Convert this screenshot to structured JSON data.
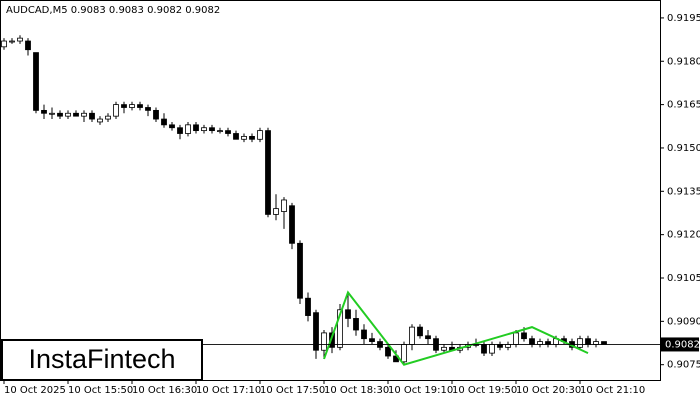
{
  "chart_data": {
    "type": "candlestick",
    "title": "AUDCAD,M5  0.9083 0.9083 0.9082 0.9082",
    "categories": [
      "10 Oct 2025",
      null,
      null,
      null,
      null,
      null,
      null,
      null,
      "10 Oct 15:50",
      null,
      null,
      null,
      null,
      null,
      null,
      null,
      "10 Oct 16:30",
      null,
      null,
      null,
      null,
      null,
      null,
      null,
      "10 Oct 17:10",
      null,
      null,
      null,
      null,
      null,
      null,
      null,
      "10 Oct 17:50",
      null,
      null,
      null,
      null,
      null,
      null,
      null,
      "10 Oct 18:30",
      null,
      null,
      null,
      null,
      null,
      null,
      null,
      "10 Oct 19:10",
      null,
      null,
      null,
      null,
      null,
      null,
      null,
      "10 Oct 19:50",
      null,
      null,
      null,
      null,
      null,
      null,
      null,
      "10 Oct 20:30",
      null,
      null,
      null,
      null,
      null,
      null,
      null,
      "10 Oct 21:10",
      null,
      null,
      null
    ],
    "open": [
      0.9185,
      0.9187,
      0.9187,
      0.9187,
      0.9183,
      0.9163,
      0.9162,
      0.9162,
      0.9161,
      0.9162,
      0.9161,
      0.9162,
      0.9159,
      0.916,
      0.9161,
      0.9165,
      0.9164,
      0.9165,
      0.9164,
      0.9163,
      0.916,
      0.9158,
      0.9157,
      0.9155,
      0.9158,
      0.9156,
      0.9157,
      0.9156,
      0.9156,
      0.9155,
      0.9153,
      0.9154,
      0.9153,
      0.9156,
      0.9127,
      0.9128,
      0.913,
      0.9117,
      0.9098,
      0.9093,
      0.908,
      0.9086,
      0.9081,
      0.9094,
      0.9091,
      0.9087,
      0.9084,
      0.9083,
      0.9081,
      0.9078,
      0.9076,
      0.9082,
      0.9088,
      0.9085,
      0.9084,
      0.908,
      0.9081,
      0.908,
      0.9081,
      0.9082,
      0.9082,
      0.9079,
      0.9082,
      0.9081,
      0.9082,
      0.9086,
      0.9084,
      0.9082,
      0.9083,
      0.9082,
      0.9084,
      0.9083,
      0.9081,
      0.9084,
      0.9082,
      0.9083
    ],
    "high": [
      0.9188,
      0.9188,
      0.9189,
      0.9188,
      0.9183,
      0.9165,
      0.9164,
      0.9163,
      0.9163,
      0.9163,
      0.9163,
      0.9163,
      0.9161,
      0.9162,
      0.9166,
      0.9166,
      0.9166,
      0.9166,
      0.9165,
      0.9164,
      0.9162,
      0.9159,
      0.9158,
      0.9159,
      0.9159,
      0.9158,
      0.9158,
      0.9157,
      0.9157,
      0.9156,
      0.9155,
      0.9155,
      0.9157,
      0.9157,
      0.9134,
      0.9133,
      0.9131,
      0.9118,
      0.91,
      0.9094,
      0.9087,
      0.9088,
      0.9096,
      0.91,
      0.9094,
      0.9089,
      0.9086,
      0.9084,
      0.9082,
      0.908,
      0.9083,
      0.9089,
      0.9089,
      0.9087,
      0.9085,
      0.9082,
      0.9083,
      0.9082,
      0.9083,
      0.9084,
      0.9083,
      0.9083,
      0.9083,
      0.9083,
      0.9087,
      0.9088,
      0.9085,
      0.9084,
      0.9084,
      0.9085,
      0.9085,
      0.9084,
      0.9085,
      0.9085,
      0.9084,
      0.9083
    ],
    "low": [
      0.9184,
      0.9186,
      0.9186,
      0.9182,
      0.9162,
      0.916,
      0.916,
      0.916,
      0.916,
      0.9161,
      0.9159,
      0.9159,
      0.9158,
      0.9159,
      0.916,
      0.9162,
      0.9163,
      0.9163,
      0.9161,
      0.9159,
      0.9157,
      0.9156,
      0.9153,
      0.9154,
      0.9155,
      0.9155,
      0.9155,
      0.9155,
      0.9154,
      0.9153,
      0.9152,
      0.9152,
      0.9152,
      0.9126,
      0.9125,
      0.9122,
      0.9115,
      0.9096,
      0.909,
      0.9077,
      0.9077,
      0.9079,
      0.908,
      0.9088,
      0.9085,
      0.9082,
      0.9082,
      0.908,
      0.9077,
      0.9076,
      0.9075,
      0.908,
      0.9084,
      0.9082,
      0.9079,
      0.9079,
      0.908,
      0.9079,
      0.908,
      0.9081,
      0.9078,
      0.9078,
      0.908,
      0.908,
      0.9081,
      0.9083,
      0.9081,
      0.9081,
      0.9081,
      0.9081,
      0.9082,
      0.908,
      0.908,
      0.9081,
      0.9081,
      0.9082
    ],
    "close": [
      0.9187,
      0.9187,
      0.9188,
      0.9184,
      0.9163,
      0.9162,
      0.9162,
      0.9161,
      0.9162,
      0.9161,
      0.9162,
      0.916,
      0.916,
      0.9161,
      0.9165,
      0.9164,
      0.9165,
      0.9164,
      0.9163,
      0.916,
      0.9158,
      0.9157,
      0.9155,
      0.9158,
      0.9156,
      0.9157,
      0.9156,
      0.9156,
      0.9155,
      0.9153,
      0.9154,
      0.9153,
      0.9156,
      0.9127,
      0.9129,
      0.9132,
      0.9117,
      0.9098,
      0.9092,
      0.908,
      0.9086,
      0.9081,
      0.9094,
      0.9091,
      0.9087,
      0.9084,
      0.9083,
      0.9081,
      0.9078,
      0.9076,
      0.9082,
      0.9088,
      0.9085,
      0.9084,
      0.908,
      0.9081,
      0.908,
      0.9081,
      0.9082,
      0.9082,
      0.9079,
      0.9082,
      0.9081,
      0.9082,
      0.9086,
      0.9084,
      0.9082,
      0.9083,
      0.9082,
      0.9084,
      0.9083,
      0.9081,
      0.9084,
      0.9082,
      0.9083,
      0.9082
    ],
    "ylim": [
      0.90697,
      0.92012
    ],
    "yticks": [
      0.9195,
      {
        "value": 0.918,
        "label": "0.9180"
      },
      0.9165,
      {
        "value": 0.915,
        "label": "0.9150"
      },
      0.9135,
      {
        "value": 0.912,
        "label": "0.9120"
      },
      0.9105,
      {
        "value": 0.909,
        "label": "0.9090"
      },
      0.9075
    ],
    "last_price": 0.9082,
    "pattern": {
      "color": "#22cc22",
      "x": [
        40,
        43,
        50,
        66,
        73
      ],
      "values": [
        0.9077,
        0.91,
        0.9075,
        0.9088,
        0.9079
      ]
    },
    "logo": "InstaFintech"
  }
}
